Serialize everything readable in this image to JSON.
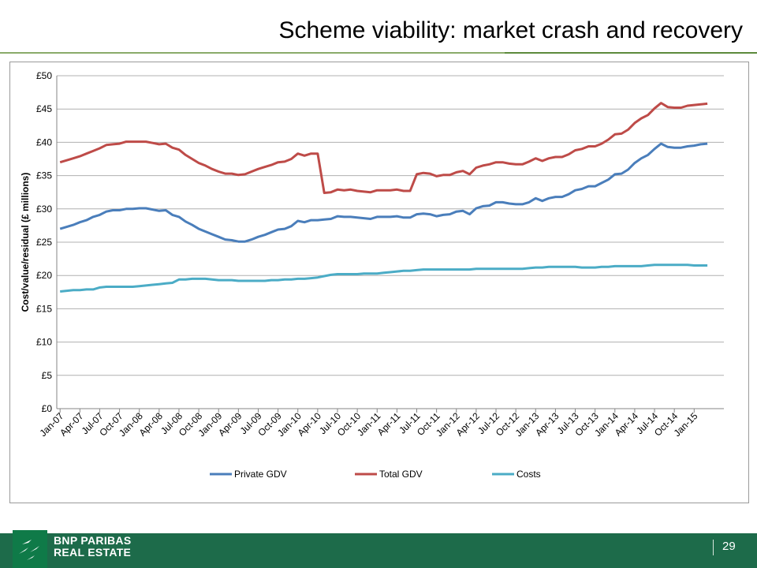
{
  "slide": {
    "title": "Scheme viability: market crash and recovery",
    "page_number": "29",
    "brand_line1": "BNP PARIBAS",
    "brand_line2": "REAL ESTATE"
  },
  "colors": {
    "private_gdv": "#4a7ebb",
    "total_gdv": "#be4b48",
    "costs": "#4bacc6",
    "footer_bg": "#1d6b4a"
  },
  "chart_data": {
    "type": "line",
    "title": "",
    "xlabel": "",
    "ylabel": "Cost/value/residual (£ millions)",
    "ylim": [
      0,
      50
    ],
    "yticks": [
      "£0",
      "£5",
      "£10",
      "£15",
      "£20",
      "£25",
      "£30",
      "£35",
      "£40",
      "£45",
      "£50"
    ],
    "ytick_values": [
      0,
      5,
      10,
      15,
      20,
      25,
      30,
      35,
      40,
      45,
      50
    ],
    "grid": true,
    "legend_position": "bottom",
    "x_tick_labels": [
      "Jan-07",
      "Apr-07",
      "Jul-07",
      "Oct-07",
      "Jan-08",
      "Apr-08",
      "Jul-08",
      "Oct-08",
      "Jan-09",
      "Apr-09",
      "Jul-09",
      "Oct-09",
      "Jan-10",
      "Apr-10",
      "Jul-10",
      "Oct-10",
      "Jan-11",
      "Apr-11",
      "Jul-11",
      "Oct-11",
      "Jan-12",
      "Apr-12",
      "Jul-12",
      "Oct-12",
      "Jan-13",
      "Apr-13",
      "Jul-13",
      "Oct-13",
      "Jan-14",
      "Apr-14",
      "Jul-14",
      "Oct-14",
      "Jan-15"
    ],
    "x_months": [
      "Jan-07",
      "Feb-07",
      "Mar-07",
      "Apr-07",
      "May-07",
      "Jun-07",
      "Jul-07",
      "Aug-07",
      "Sep-07",
      "Oct-07",
      "Nov-07",
      "Dec-07",
      "Jan-08",
      "Feb-08",
      "Mar-08",
      "Apr-08",
      "May-08",
      "Jun-08",
      "Jul-08",
      "Aug-08",
      "Sep-08",
      "Oct-08",
      "Nov-08",
      "Dec-08",
      "Jan-09",
      "Feb-09",
      "Mar-09",
      "Apr-09",
      "May-09",
      "Jun-09",
      "Jul-09",
      "Aug-09",
      "Sep-09",
      "Oct-09",
      "Nov-09",
      "Dec-09",
      "Jan-10",
      "Feb-10",
      "Mar-10",
      "Apr-10",
      "May-10",
      "Jun-10",
      "Jul-10",
      "Aug-10",
      "Sep-10",
      "Oct-10",
      "Nov-10",
      "Dec-10",
      "Jan-11",
      "Feb-11",
      "Mar-11",
      "Apr-11",
      "May-11",
      "Jun-11",
      "Jul-11",
      "Aug-11",
      "Sep-11",
      "Oct-11",
      "Nov-11",
      "Dec-11",
      "Jan-12",
      "Feb-12",
      "Mar-12",
      "Apr-12",
      "May-12",
      "Jun-12",
      "Jul-12",
      "Aug-12",
      "Sep-12",
      "Oct-12",
      "Nov-12",
      "Dec-12",
      "Jan-13",
      "Feb-13",
      "Mar-13",
      "Apr-13",
      "May-13",
      "Jun-13",
      "Jul-13",
      "Aug-13",
      "Sep-13",
      "Oct-13",
      "Nov-13",
      "Dec-13",
      "Jan-14",
      "Feb-14",
      "Mar-14",
      "Apr-14",
      "May-14",
      "Jun-14",
      "Jul-14",
      "Aug-14",
      "Sep-14",
      "Oct-14",
      "Nov-14",
      "Dec-14",
      "Jan-15",
      "Feb-15",
      "Mar-15",
      "Apr-15",
      "May-15"
    ],
    "series": [
      {
        "name": "Private GDV",
        "values": [
          27.0,
          27.3,
          27.6,
          28.0,
          28.3,
          28.8,
          29.1,
          29.6,
          29.8,
          29.8,
          30.0,
          30.0,
          30.1,
          30.1,
          29.9,
          29.7,
          29.8,
          29.1,
          28.8,
          28.1,
          27.6,
          27.0,
          26.6,
          26.2,
          25.8,
          25.4,
          25.3,
          25.1,
          25.1,
          25.4,
          25.8,
          26.1,
          26.5,
          26.9,
          27.0,
          27.4,
          28.2,
          28.0,
          28.3,
          28.3,
          28.4,
          28.5,
          28.9,
          28.8,
          28.8,
          28.7,
          28.6,
          28.5,
          28.8,
          28.8,
          28.8,
          28.9,
          28.7,
          28.7,
          29.2,
          29.3,
          29.2,
          28.9,
          29.1,
          29.2,
          29.6,
          29.7,
          29.2,
          30.1,
          30.4,
          30.5,
          31.0,
          31.0,
          30.8,
          30.7,
          30.7,
          31.0,
          31.6,
          31.2,
          31.6,
          31.8,
          31.8,
          32.2,
          32.8,
          33.0,
          33.4,
          33.4,
          33.9,
          34.4,
          35.2,
          35.3,
          35.9,
          36.9,
          37.6,
          38.1,
          39.0,
          39.8,
          39.3,
          39.2,
          39.2,
          39.4,
          39.5,
          39.7,
          39.8
        ]
      },
      {
        "name": "Total GDV",
        "values": [
          37.0,
          37.3,
          37.6,
          37.9,
          38.3,
          38.7,
          39.1,
          39.6,
          39.7,
          39.8,
          40.1,
          40.1,
          40.1,
          40.1,
          39.9,
          39.7,
          39.8,
          39.2,
          38.9,
          38.1,
          37.5,
          36.9,
          36.5,
          36.0,
          35.6,
          35.3,
          35.3,
          35.1,
          35.2,
          35.6,
          36.0,
          36.3,
          36.6,
          37.0,
          37.1,
          37.5,
          38.3,
          38.0,
          38.3,
          38.3,
          32.4,
          32.5,
          32.9,
          32.8,
          32.9,
          32.7,
          32.6,
          32.5,
          32.8,
          32.8,
          32.8,
          32.9,
          32.7,
          32.7,
          35.2,
          35.4,
          35.3,
          34.9,
          35.1,
          35.1,
          35.5,
          35.7,
          35.2,
          36.2,
          36.5,
          36.7,
          37.0,
          37.0,
          36.8,
          36.7,
          36.7,
          37.1,
          37.6,
          37.2,
          37.6,
          37.8,
          37.8,
          38.2,
          38.8,
          39.0,
          39.4,
          39.4,
          39.8,
          40.4,
          41.2,
          41.3,
          41.9,
          42.9,
          43.6,
          44.1,
          45.1,
          45.9,
          45.3,
          45.2,
          45.2,
          45.5,
          45.6,
          45.7,
          45.8
        ]
      },
      {
        "name": "Costs",
        "values": [
          17.6,
          17.7,
          17.8,
          17.8,
          17.9,
          17.9,
          18.2,
          18.3,
          18.3,
          18.3,
          18.3,
          18.3,
          18.4,
          18.5,
          18.6,
          18.7,
          18.8,
          18.9,
          19.4,
          19.4,
          19.5,
          19.5,
          19.5,
          19.4,
          19.3,
          19.3,
          19.3,
          19.2,
          19.2,
          19.2,
          19.2,
          19.2,
          19.3,
          19.3,
          19.4,
          19.4,
          19.5,
          19.5,
          19.6,
          19.7,
          19.9,
          20.1,
          20.2,
          20.2,
          20.2,
          20.2,
          20.3,
          20.3,
          20.3,
          20.4,
          20.5,
          20.6,
          20.7,
          20.7,
          20.8,
          20.9,
          20.9,
          20.9,
          20.9,
          20.9,
          20.9,
          20.9,
          20.9,
          21.0,
          21.0,
          21.0,
          21.0,
          21.0,
          21.0,
          21.0,
          21.0,
          21.1,
          21.2,
          21.2,
          21.3,
          21.3,
          21.3,
          21.3,
          21.3,
          21.2,
          21.2,
          21.2,
          21.3,
          21.3,
          21.4,
          21.4,
          21.4,
          21.4,
          21.4,
          21.5,
          21.6,
          21.6,
          21.6,
          21.6,
          21.6,
          21.6,
          21.5,
          21.5,
          21.5
        ]
      }
    ]
  }
}
